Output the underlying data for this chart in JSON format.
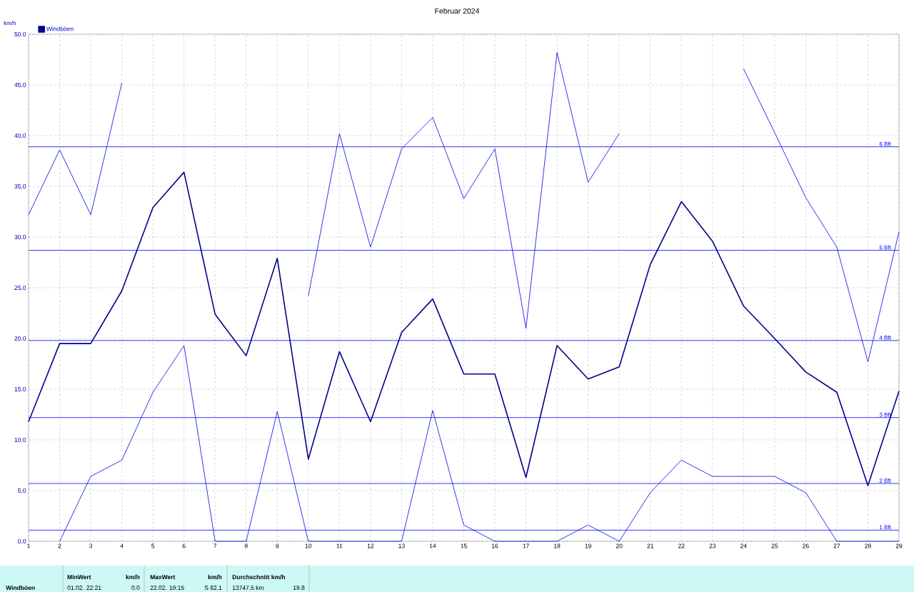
{
  "chart_data": {
    "type": "line",
    "title": "Februar 2024",
    "ylabel": "km/h",
    "x": [
      1,
      2,
      3,
      4,
      5,
      6,
      7,
      8,
      9,
      10,
      11,
      12,
      13,
      14,
      15,
      16,
      17,
      18,
      19,
      20,
      21,
      22,
      23,
      24,
      25,
      26,
      27,
      28,
      29
    ],
    "series": [
      {
        "color": "#0000e6",
        "values": [
          32.2,
          38.6,
          32.2,
          45.2,
          null,
          null,
          null,
          null,
          null,
          24.2,
          40.2,
          29.0,
          38.7,
          41.8,
          33.8,
          38.7,
          21.0,
          48.2,
          35.4,
          40.2,
          null,
          null,
          null,
          46.6,
          40.3,
          33.9,
          29.0,
          17.7,
          30.5
        ]
      },
      {
        "name": "Windböen",
        "color": "#00008b",
        "values": [
          11.8,
          19.5,
          19.5,
          24.7,
          32.9,
          36.4,
          22.4,
          18.3,
          27.9,
          8.1,
          18.7,
          11.8,
          20.6,
          23.9,
          16.5,
          16.5,
          6.3,
          19.3,
          16.0,
          17.2,
          27.3,
          33.5,
          29.6,
          23.2,
          20.0,
          16.7,
          14.7,
          5.5,
          14.8
        ]
      },
      {
        "color": "#0000e6",
        "values": [
          null,
          0,
          6.4,
          8.0,
          14.7,
          19.3,
          0,
          0,
          12.8,
          0,
          0,
          0,
          0,
          12.9,
          1.6,
          0,
          0,
          0,
          1.6,
          0,
          4.8,
          8.0,
          6.4,
          6.4,
          6.4,
          4.8,
          0,
          0,
          0
        ]
      }
    ],
    "xlim": [
      1,
      29
    ],
    "xticks": [
      1,
      2,
      3,
      4,
      5,
      6,
      7,
      8,
      9,
      10,
      11,
      12,
      13,
      14,
      15,
      16,
      17,
      18,
      19,
      20,
      21,
      22,
      23,
      24,
      25,
      26,
      27,
      28,
      29
    ],
    "ylim": [
      0,
      50
    ],
    "yticks": [
      {
        "value": 0,
        "label": "0.0"
      },
      {
        "value": 5,
        "label": "5.0"
      },
      {
        "value": 10,
        "label": "10.0"
      },
      {
        "value": 15,
        "label": "15.0"
      },
      {
        "value": 20,
        "label": "20.0"
      },
      {
        "value": 25,
        "label": "25.0"
      },
      {
        "value": 30,
        "label": "30.0"
      },
      {
        "value": 35,
        "label": "35.0"
      },
      {
        "value": 40,
        "label": "40.0"
      },
      {
        "value": 45,
        "label": "45.0"
      },
      {
        "value": 50,
        "label": "50.0"
      }
    ],
    "grid": true,
    "legend": "top left",
    "marker": "none",
    "line_style": "solid",
    "ref_lines": [
      {
        "axis": "y",
        "value": 38.9,
        "label": "6 Bft",
        "color": "#0000ff"
      },
      {
        "axis": "y",
        "value": 28.7,
        "label": "5 Bft",
        "color": "#0000ff"
      },
      {
        "axis": "y",
        "value": 19.8,
        "label": "4 Bft",
        "color": "#0000ff"
      },
      {
        "axis": "y",
        "value": 12.2,
        "label": "3 Bft",
        "color": "#0000ff"
      },
      {
        "axis": "y",
        "value": 5.7,
        "label": "2 Bft",
        "color": "#0000ff"
      },
      {
        "axis": "y",
        "value": 1.1,
        "label": "1 Bft",
        "color": "#0000ff"
      }
    ],
    "annotations": [
      "Windböen",
      "MinWert",
      "km/h",
      "01.02.  22:21",
      "0.0",
      "MaxWert",
      "km/h",
      "22.02.  19:15",
      "S 82.1",
      "Durchschnitt km/h",
      "13747.5 km",
      "19.8"
    ]
  }
}
